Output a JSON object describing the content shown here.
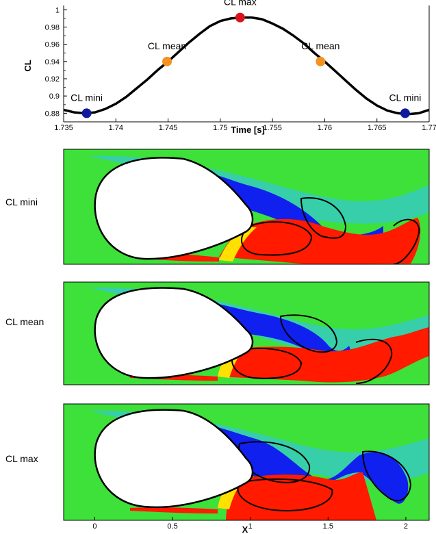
{
  "chart_data": [
    {
      "type": "line",
      "title": "",
      "xlabel": "Time [s]",
      "ylabel": "CL",
      "xlim": [
        1.735,
        1.77
      ],
      "ylim": [
        0.87,
        1.005
      ],
      "x_ticks": [
        "1.735",
        "1.74",
        "1.745",
        "1.75",
        "1.755",
        "1.76",
        "1.765",
        "1.77"
      ],
      "y_ticks": [
        "0.88",
        "0.9",
        "0.92",
        "0.94",
        "0.96",
        "0.98",
        "1"
      ],
      "grid": false,
      "series": [
        {
          "x": [
            1.735,
            1.736,
            1.737,
            1.738,
            1.739,
            1.74,
            1.741,
            1.742,
            1.743,
            1.744,
            1.745,
            1.746,
            1.747,
            1.748,
            1.749,
            1.75,
            1.751,
            1.752,
            1.753,
            1.754,
            1.755,
            1.756,
            1.757,
            1.758,
            1.759,
            1.76,
            1.761,
            1.762,
            1.763,
            1.764,
            1.765,
            1.766,
            1.767,
            1.768,
            1.769,
            1.77
          ],
          "y": [
            0.884,
            0.881,
            0.88,
            0.881,
            0.885,
            0.891,
            0.899,
            0.909,
            0.919,
            0.93,
            0.94,
            0.951,
            0.962,
            0.972,
            0.981,
            0.987,
            0.99,
            0.991,
            0.991,
            0.989,
            0.984,
            0.978,
            0.97,
            0.961,
            0.95,
            0.94,
            0.929,
            0.918,
            0.907,
            0.897,
            0.889,
            0.883,
            0.88,
            0.879,
            0.88,
            0.884
          ]
        }
      ],
      "markers": [
        {
          "label": "CL mini",
          "x": 1.7372,
          "y": 0.88,
          "color": "#0f1a9c"
        },
        {
          "label": "CL mean",
          "x": 1.7449,
          "y": 0.94,
          "color": "#f39220"
        },
        {
          "label": "CL max",
          "x": 1.7519,
          "y": 0.991,
          "color": "#d91418"
        },
        {
          "label": "CL mean",
          "x": 1.7596,
          "y": 0.94,
          "color": "#f39220"
        },
        {
          "label": "CL mini",
          "x": 1.7677,
          "y": 0.88,
          "color": "#0f1a9c"
        }
      ]
    },
    {
      "type": "heatmap",
      "xlabel": "X",
      "x_ticks": [
        "0",
        "0.5",
        "1",
        "1.5",
        "2"
      ],
      "xlim": [
        -0.2,
        2.15
      ],
      "panels": [
        {
          "label": "CL mini"
        },
        {
          "label": "CL mean"
        },
        {
          "label": "CL max"
        }
      ],
      "colors": {
        "background": "#3ee03a",
        "positive": "#ff1a00",
        "negative": "#1020ee",
        "outline": "#000000"
      }
    }
  ]
}
